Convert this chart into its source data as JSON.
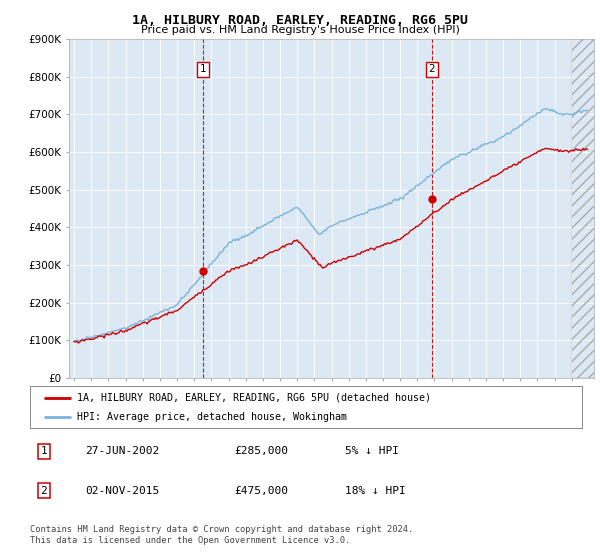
{
  "title": "1A, HILBURY ROAD, EARLEY, READING, RG6 5PU",
  "subtitle": "Price paid vs. HM Land Registry's House Price Index (HPI)",
  "ylim": [
    0,
    900000
  ],
  "yticks": [
    0,
    100000,
    200000,
    300000,
    400000,
    500000,
    600000,
    700000,
    800000,
    900000
  ],
  "ytick_labels": [
    "£0",
    "£100K",
    "£200K",
    "£300K",
    "£400K",
    "£500K",
    "£600K",
    "£700K",
    "£800K",
    "£900K"
  ],
  "bg_color": "#dce9f5",
  "hatch_bg": "#e8e8e8",
  "sale1_date": 2002.49,
  "sale1_price": 285000,
  "sale1_label": "1",
  "sale2_date": 2015.84,
  "sale2_price": 475000,
  "sale2_label": "2",
  "hpi_color": "#7ab3d9",
  "price_color": "#cc0000",
  "vline_color": "#cc0000",
  "legend_entry1": "1A, HILBURY ROAD, EARLEY, READING, RG6 5PU (detached house)",
  "legend_entry2": "HPI: Average price, detached house, Wokingham",
  "table_row1": [
    "1",
    "27-JUN-2002",
    "£285,000",
    "5% ↓ HPI"
  ],
  "table_row2": [
    "2",
    "02-NOV-2015",
    "£475,000",
    "18% ↓ HPI"
  ],
  "footnote": "Contains HM Land Registry data © Crown copyright and database right 2024.\nThis data is licensed under the Open Government Licence v3.0."
}
